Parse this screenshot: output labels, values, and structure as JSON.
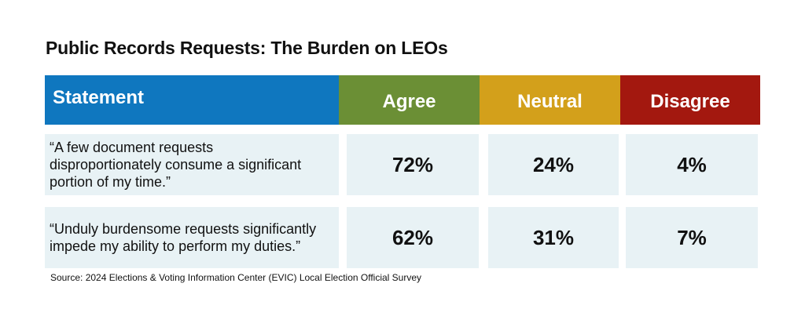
{
  "chart_data": {
    "type": "table",
    "title": "Public Records Requests: The Burden on LEOs",
    "columns": [
      "Statement",
      "Agree",
      "Neutral",
      "Disagree"
    ],
    "colors": {
      "statement": "#0f77bf",
      "agree": "#6b8f35",
      "neutral": "#d3a01b",
      "disagree": "#a3180f",
      "cell_background": "#e8f2f5"
    },
    "rows": [
      {
        "statement_lines": [
          "“A few document requests",
          "disproportionately consume a significant",
          "portion of my time.”"
        ],
        "agree": "72%",
        "neutral": "24%",
        "disagree": "4%"
      },
      {
        "statement_lines": [
          "“Unduly burdensome requests significantly",
          "impede my ability to perform my duties.”"
        ],
        "agree": "62%",
        "neutral": "31%",
        "disagree": "7%"
      }
    ],
    "source": "Source: 2024 Elections & Voting Information Center (EVIC) Local Election Official Survey"
  }
}
